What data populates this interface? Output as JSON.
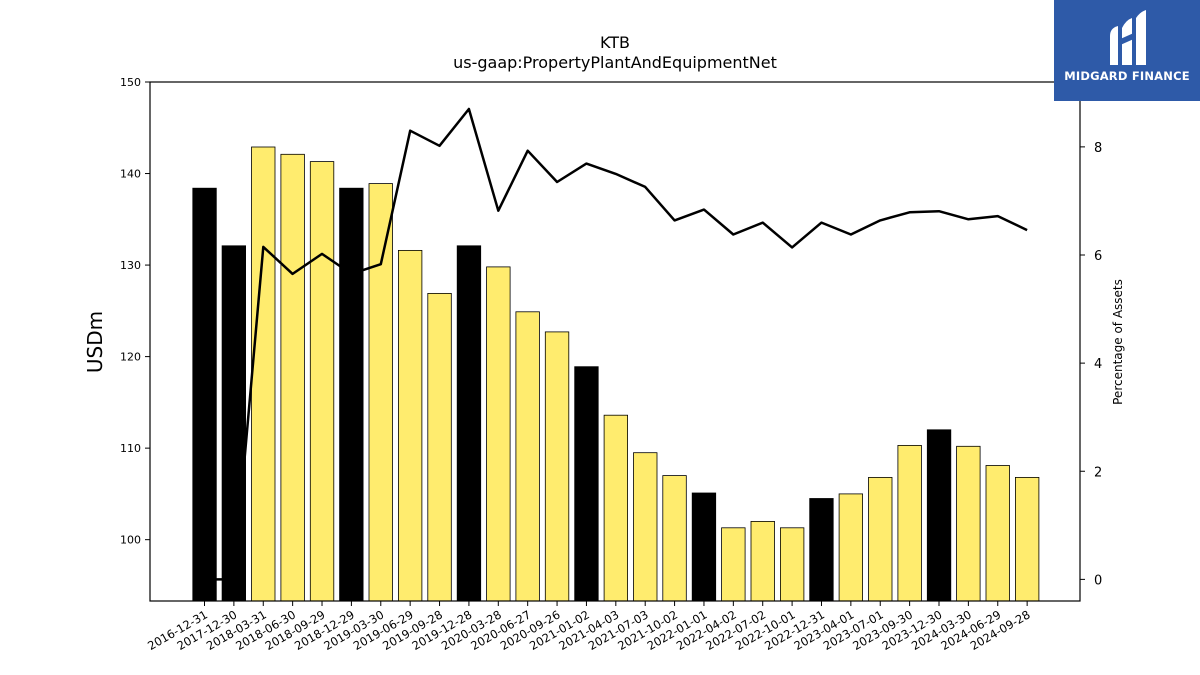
{
  "chart_data": {
    "type": "bar+line",
    "title": "KTB",
    "subtitle": "us-gaap:PropertyPlantAndEquipmentNet",
    "ylabel": "USDm",
    "y2label": "Percentage of Assets",
    "ylim": [
      93.3,
      150
    ],
    "y2lim": [
      -0.4,
      9.2
    ],
    "yticks": [
      100,
      110,
      120,
      130,
      140,
      150
    ],
    "y2ticks": [
      0,
      2,
      4,
      6,
      8
    ],
    "categories": [
      "2016-12-31",
      "2017-12-30",
      "2018-03-31",
      "2018-06-30",
      "2018-09-29",
      "2018-12-29",
      "2019-03-30",
      "2019-06-29",
      "2019-09-28",
      "2019-12-28",
      "2020-03-28",
      "2020-06-27",
      "2020-09-26",
      "2021-01-02",
      "2021-04-03",
      "2021-07-03",
      "2021-10-02",
      "2022-01-01",
      "2022-04-02",
      "2022-07-02",
      "2022-10-01",
      "2022-12-31",
      "2023-04-01",
      "2023-07-01",
      "2023-09-30",
      "2023-12-30",
      "2024-03-30",
      "2024-06-29",
      "2024-09-28"
    ],
    "bars": {
      "name": "PropertyPlantAndEquipmentNet",
      "values": [
        138.4,
        132.1,
        142.9,
        142.1,
        141.3,
        138.4,
        138.9,
        131.6,
        126.9,
        132.1,
        129.8,
        124.9,
        122.7,
        118.9,
        113.6,
        109.5,
        107.0,
        105.1,
        101.3,
        102.0,
        101.3,
        104.5,
        105.0,
        106.8,
        110.3,
        112.0,
        110.2,
        108.1,
        106.8
      ],
      "annual": [
        true,
        true,
        false,
        false,
        false,
        true,
        false,
        false,
        false,
        true,
        false,
        false,
        false,
        true,
        false,
        false,
        false,
        true,
        false,
        false,
        false,
        true,
        false,
        false,
        false,
        true,
        false,
        false,
        false
      ],
      "colors": {
        "annual": "#000000",
        "quarterly": "#ffec6e"
      }
    },
    "line": {
      "name": "Percentage of Assets",
      "values": [
        0.0,
        0.0,
        6.15,
        5.65,
        6.02,
        5.65,
        5.83,
        8.3,
        8.02,
        8.7,
        6.82,
        7.93,
        7.35,
        7.69,
        7.5,
        7.26,
        6.64,
        6.84,
        6.38,
        6.6,
        6.14,
        6.6,
        6.38,
        6.64,
        6.79,
        6.81,
        6.66,
        6.72,
        6.46
      ],
      "color": "#000000"
    }
  },
  "logo": {
    "text": "MIDGARD FINANCE",
    "background": "#2e5aa8"
  }
}
